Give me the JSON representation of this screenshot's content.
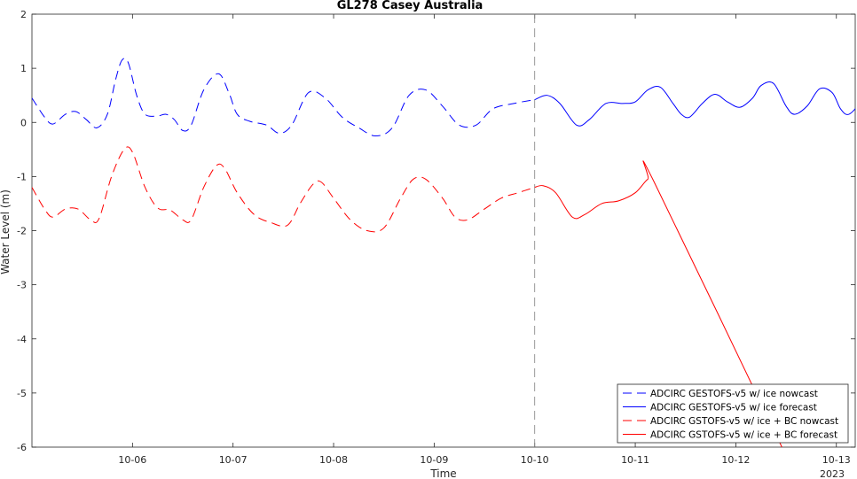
{
  "chart_data": {
    "type": "line",
    "title": "GL278 Casey Australia",
    "xlabel": "Time",
    "ylabel": "Water Level (m)",
    "year_label": "2023",
    "ylim": [
      -6,
      2
    ],
    "xlim": [
      "2023-10-05 00:00",
      "2023-10-13 04:30"
    ],
    "x_ticks": [
      "10-06",
      "10-07",
      "10-08",
      "10-09",
      "10-10",
      "10-11",
      "10-12",
      "10-13"
    ],
    "y_ticks": [
      "2",
      "1",
      "0",
      "-1",
      "-2",
      "-3",
      "-4",
      "-5",
      "-6"
    ],
    "grid": false,
    "legend_position": "bottom-right",
    "vline": {
      "x": "2023-10-10 00:00",
      "color": "#808080",
      "style": "dashed"
    },
    "series": [
      {
        "name": "ADCIRC GESTOFS-v5 w/ ice nowcast",
        "color": "#0000ff",
        "style": "dashed",
        "points": [
          [
            "2023-10-05 00:00",
            0.45
          ],
          [
            "2023-10-05 03:00",
            0.1
          ],
          [
            "2023-10-05 05:00",
            -0.03
          ],
          [
            "2023-10-05 08:00",
            0.15
          ],
          [
            "2023-10-05 10:30",
            0.2
          ],
          [
            "2023-10-05 13:00",
            0.05
          ],
          [
            "2023-10-05 15:30",
            -0.1
          ],
          [
            "2023-10-05 18:00",
            0.15
          ],
          [
            "2023-10-05 20:00",
            0.8
          ],
          [
            "2023-10-05 21:30",
            1.15
          ],
          [
            "2023-10-05 23:00",
            1.1
          ],
          [
            "2023-10-06 01:00",
            0.5
          ],
          [
            "2023-10-06 03:00",
            0.15
          ],
          [
            "2023-10-06 06:00",
            0.12
          ],
          [
            "2023-10-06 08:00",
            0.15
          ],
          [
            "2023-10-06 10:00",
            0.05
          ],
          [
            "2023-10-06 12:00",
            -0.15
          ],
          [
            "2023-10-06 14:00",
            -0.05
          ],
          [
            "2023-10-06 17:00",
            0.6
          ],
          [
            "2023-10-06 20:30",
            0.9
          ],
          [
            "2023-10-06 23:00",
            0.55
          ],
          [
            "2023-10-07 01:00",
            0.15
          ],
          [
            "2023-10-07 04:00",
            0.02
          ],
          [
            "2023-10-07 08:00",
            -0.05
          ],
          [
            "2023-10-07 11:00",
            -0.2
          ],
          [
            "2023-10-07 14:00",
            -0.05
          ],
          [
            "2023-10-07 18:00",
            0.55
          ],
          [
            "2023-10-07 22:00",
            0.45
          ],
          [
            "2023-10-08 02:00",
            0.1
          ],
          [
            "2023-10-08 06:00",
            -0.1
          ],
          [
            "2023-10-08 10:00",
            -0.25
          ],
          [
            "2023-10-08 14:00",
            -0.1
          ],
          [
            "2023-10-08 18:00",
            0.5
          ],
          [
            "2023-10-08 22:00",
            0.6
          ],
          [
            "2023-10-09 02:00",
            0.3
          ],
          [
            "2023-10-09 06:00",
            -0.05
          ],
          [
            "2023-10-09 10:00",
            -0.05
          ],
          [
            "2023-10-09 14:00",
            0.25
          ],
          [
            "2023-10-09 19:00",
            0.35
          ],
          [
            "2023-10-10 00:00",
            0.42
          ]
        ]
      },
      {
        "name": "ADCIRC GESTOFS-v5 w/ ice forecast",
        "color": "#0000ff",
        "style": "solid",
        "points": [
          [
            "2023-10-10 00:00",
            0.42
          ],
          [
            "2023-10-10 03:00",
            0.5
          ],
          [
            "2023-10-10 06:00",
            0.35
          ],
          [
            "2023-10-10 10:00",
            -0.05
          ],
          [
            "2023-10-10 13:00",
            0.05
          ],
          [
            "2023-10-10 17:00",
            0.35
          ],
          [
            "2023-10-10 21:00",
            0.35
          ],
          [
            "2023-10-11 00:00",
            0.38
          ],
          [
            "2023-10-11 03:00",
            0.6
          ],
          [
            "2023-10-11 06:00",
            0.65
          ],
          [
            "2023-10-11 09:00",
            0.35
          ],
          [
            "2023-10-11 11:00",
            0.15
          ],
          [
            "2023-10-11 13:00",
            0.1
          ],
          [
            "2023-10-11 16:00",
            0.35
          ],
          [
            "2023-10-11 19:00",
            0.52
          ],
          [
            "2023-10-11 22:00",
            0.38
          ],
          [
            "2023-10-12 01:00",
            0.28
          ],
          [
            "2023-10-12 04:00",
            0.45
          ],
          [
            "2023-10-12 06:00",
            0.68
          ],
          [
            "2023-10-12 09:00",
            0.72
          ],
          [
            "2023-10-12 12:00",
            0.3
          ],
          [
            "2023-10-12 14:00",
            0.15
          ],
          [
            "2023-10-12 17:00",
            0.3
          ],
          [
            "2023-10-12 20:00",
            0.62
          ],
          [
            "2023-10-12 23:00",
            0.55
          ],
          [
            "2023-10-13 01:00",
            0.25
          ],
          [
            "2023-10-13 03:00",
            0.15
          ],
          [
            "2023-10-13 06:00",
            0.4
          ],
          [
            "2023-10-13 08:00",
            0.68
          ],
          [
            "2023-10-13 10:00",
            0.7
          ]
        ]
      },
      {
        "name": "ADCIRC GSTOFS-v5 w/ ice + BC nowcast",
        "color": "#ff0000",
        "style": "dashed",
        "points": [
          [
            "2023-10-05 00:00",
            -1.2
          ],
          [
            "2023-10-05 03:00",
            -1.6
          ],
          [
            "2023-10-05 05:00",
            -1.75
          ],
          [
            "2023-10-05 08:00",
            -1.6
          ],
          [
            "2023-10-05 11:00",
            -1.6
          ],
          [
            "2023-10-05 14:00",
            -1.8
          ],
          [
            "2023-10-05 16:00",
            -1.78
          ],
          [
            "2023-10-05 19:00",
            -1.0
          ],
          [
            "2023-10-05 22:00",
            -0.5
          ],
          [
            "2023-10-06 00:00",
            -0.55
          ],
          [
            "2023-10-06 03:00",
            -1.2
          ],
          [
            "2023-10-06 06:00",
            -1.58
          ],
          [
            "2023-10-06 09:00",
            -1.62
          ],
          [
            "2023-10-06 12:00",
            -1.8
          ],
          [
            "2023-10-06 14:00",
            -1.8
          ],
          [
            "2023-10-06 17:00",
            -1.2
          ],
          [
            "2023-10-06 20:00",
            -0.8
          ],
          [
            "2023-10-06 22:00",
            -0.85
          ],
          [
            "2023-10-07 01:00",
            -1.3
          ],
          [
            "2023-10-07 05:00",
            -1.7
          ],
          [
            "2023-10-07 09:00",
            -1.85
          ],
          [
            "2023-10-07 13:00",
            -1.9
          ],
          [
            "2023-10-07 16:00",
            -1.5
          ],
          [
            "2023-10-07 19:00",
            -1.15
          ],
          [
            "2023-10-07 21:00",
            -1.1
          ],
          [
            "2023-10-08 00:00",
            -1.4
          ],
          [
            "2023-10-08 04:00",
            -1.8
          ],
          [
            "2023-10-08 08:00",
            -2.0
          ],
          [
            "2023-10-08 12:00",
            -1.95
          ],
          [
            "2023-10-08 16:00",
            -1.4
          ],
          [
            "2023-10-08 19:00",
            -1.05
          ],
          [
            "2023-10-08 22:00",
            -1.05
          ],
          [
            "2023-10-09 02:00",
            -1.4
          ],
          [
            "2023-10-09 05:00",
            -1.75
          ],
          [
            "2023-10-09 08:00",
            -1.8
          ],
          [
            "2023-10-09 12:00",
            -1.6
          ],
          [
            "2023-10-09 16:00",
            -1.4
          ],
          [
            "2023-10-09 20:00",
            -1.3
          ],
          [
            "2023-10-10 00:00",
            -1.2
          ]
        ]
      },
      {
        "name": "ADCIRC GSTOFS-v5 w/ ice + BC forecast",
        "color": "#ff0000",
        "style": "solid",
        "points": [
          [
            "2023-10-10 00:00",
            -1.2
          ],
          [
            "2023-10-10 02:00",
            -1.17
          ],
          [
            "2023-10-10 05:00",
            -1.3
          ],
          [
            "2023-10-10 09:00",
            -1.75
          ],
          [
            "2023-10-10 12:00",
            -1.7
          ],
          [
            "2023-10-10 16:00",
            -1.5
          ],
          [
            "2023-10-10 20:00",
            -1.45
          ],
          [
            "2023-10-11 00:00",
            -1.3
          ],
          [
            "2023-10-11 03:00",
            -1.05
          ],
          [
            "2023-10-11 04:30",
            -1.1
          ],
          [
            "2023-10-12 11:00",
            -6.0
          ]
        ]
      }
    ]
  }
}
